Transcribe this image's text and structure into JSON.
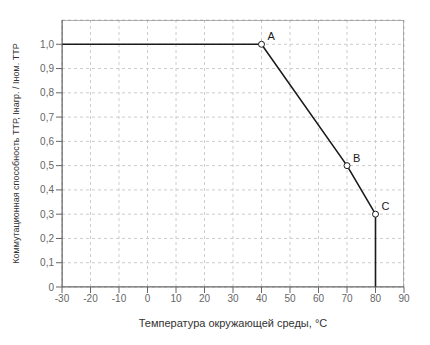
{
  "chart_data": {
    "type": "line",
    "xlabel": "Температура окружающей среды, °C",
    "ylabel": "Коммутационная способность ТТР, Iнагр. / Iном. ТТР",
    "x": [
      -30,
      40,
      70,
      80,
      80
    ],
    "values": [
      1.0,
      1.0,
      0.5,
      0.3,
      0.0
    ],
    "color": "#1a1a1a",
    "annotations": [
      {
        "x": 40,
        "y": 1.0,
        "text": "A"
      },
      {
        "x": 70,
        "y": 0.5,
        "text": "B"
      },
      {
        "x": 80,
        "y": 0.3,
        "text": "C"
      }
    ],
    "xlim": [
      -30,
      90
    ],
    "ylim": [
      0,
      1.1
    ],
    "xticks": [
      -30,
      -20,
      -10,
      0,
      10,
      20,
      30,
      40,
      50,
      60,
      70,
      80,
      90
    ],
    "yticks": [
      0,
      {
        "value": 0.1,
        "label": "0,1"
      },
      {
        "value": 0.2,
        "label": "0,2"
      },
      {
        "value": 0.3,
        "label": "0,3"
      },
      {
        "value": 0.4,
        "label": "0,4"
      },
      {
        "value": 0.5,
        "label": "0,5"
      },
      {
        "value": 0.6,
        "label": "0,6"
      },
      {
        "value": 0.7,
        "label": "0,7"
      },
      {
        "value": 0.8,
        "label": "0,8"
      },
      {
        "value": 0.9,
        "label": "0,9"
      },
      {
        "value": 1.0,
        "label": "1,0"
      }
    ],
    "grid": true
  }
}
